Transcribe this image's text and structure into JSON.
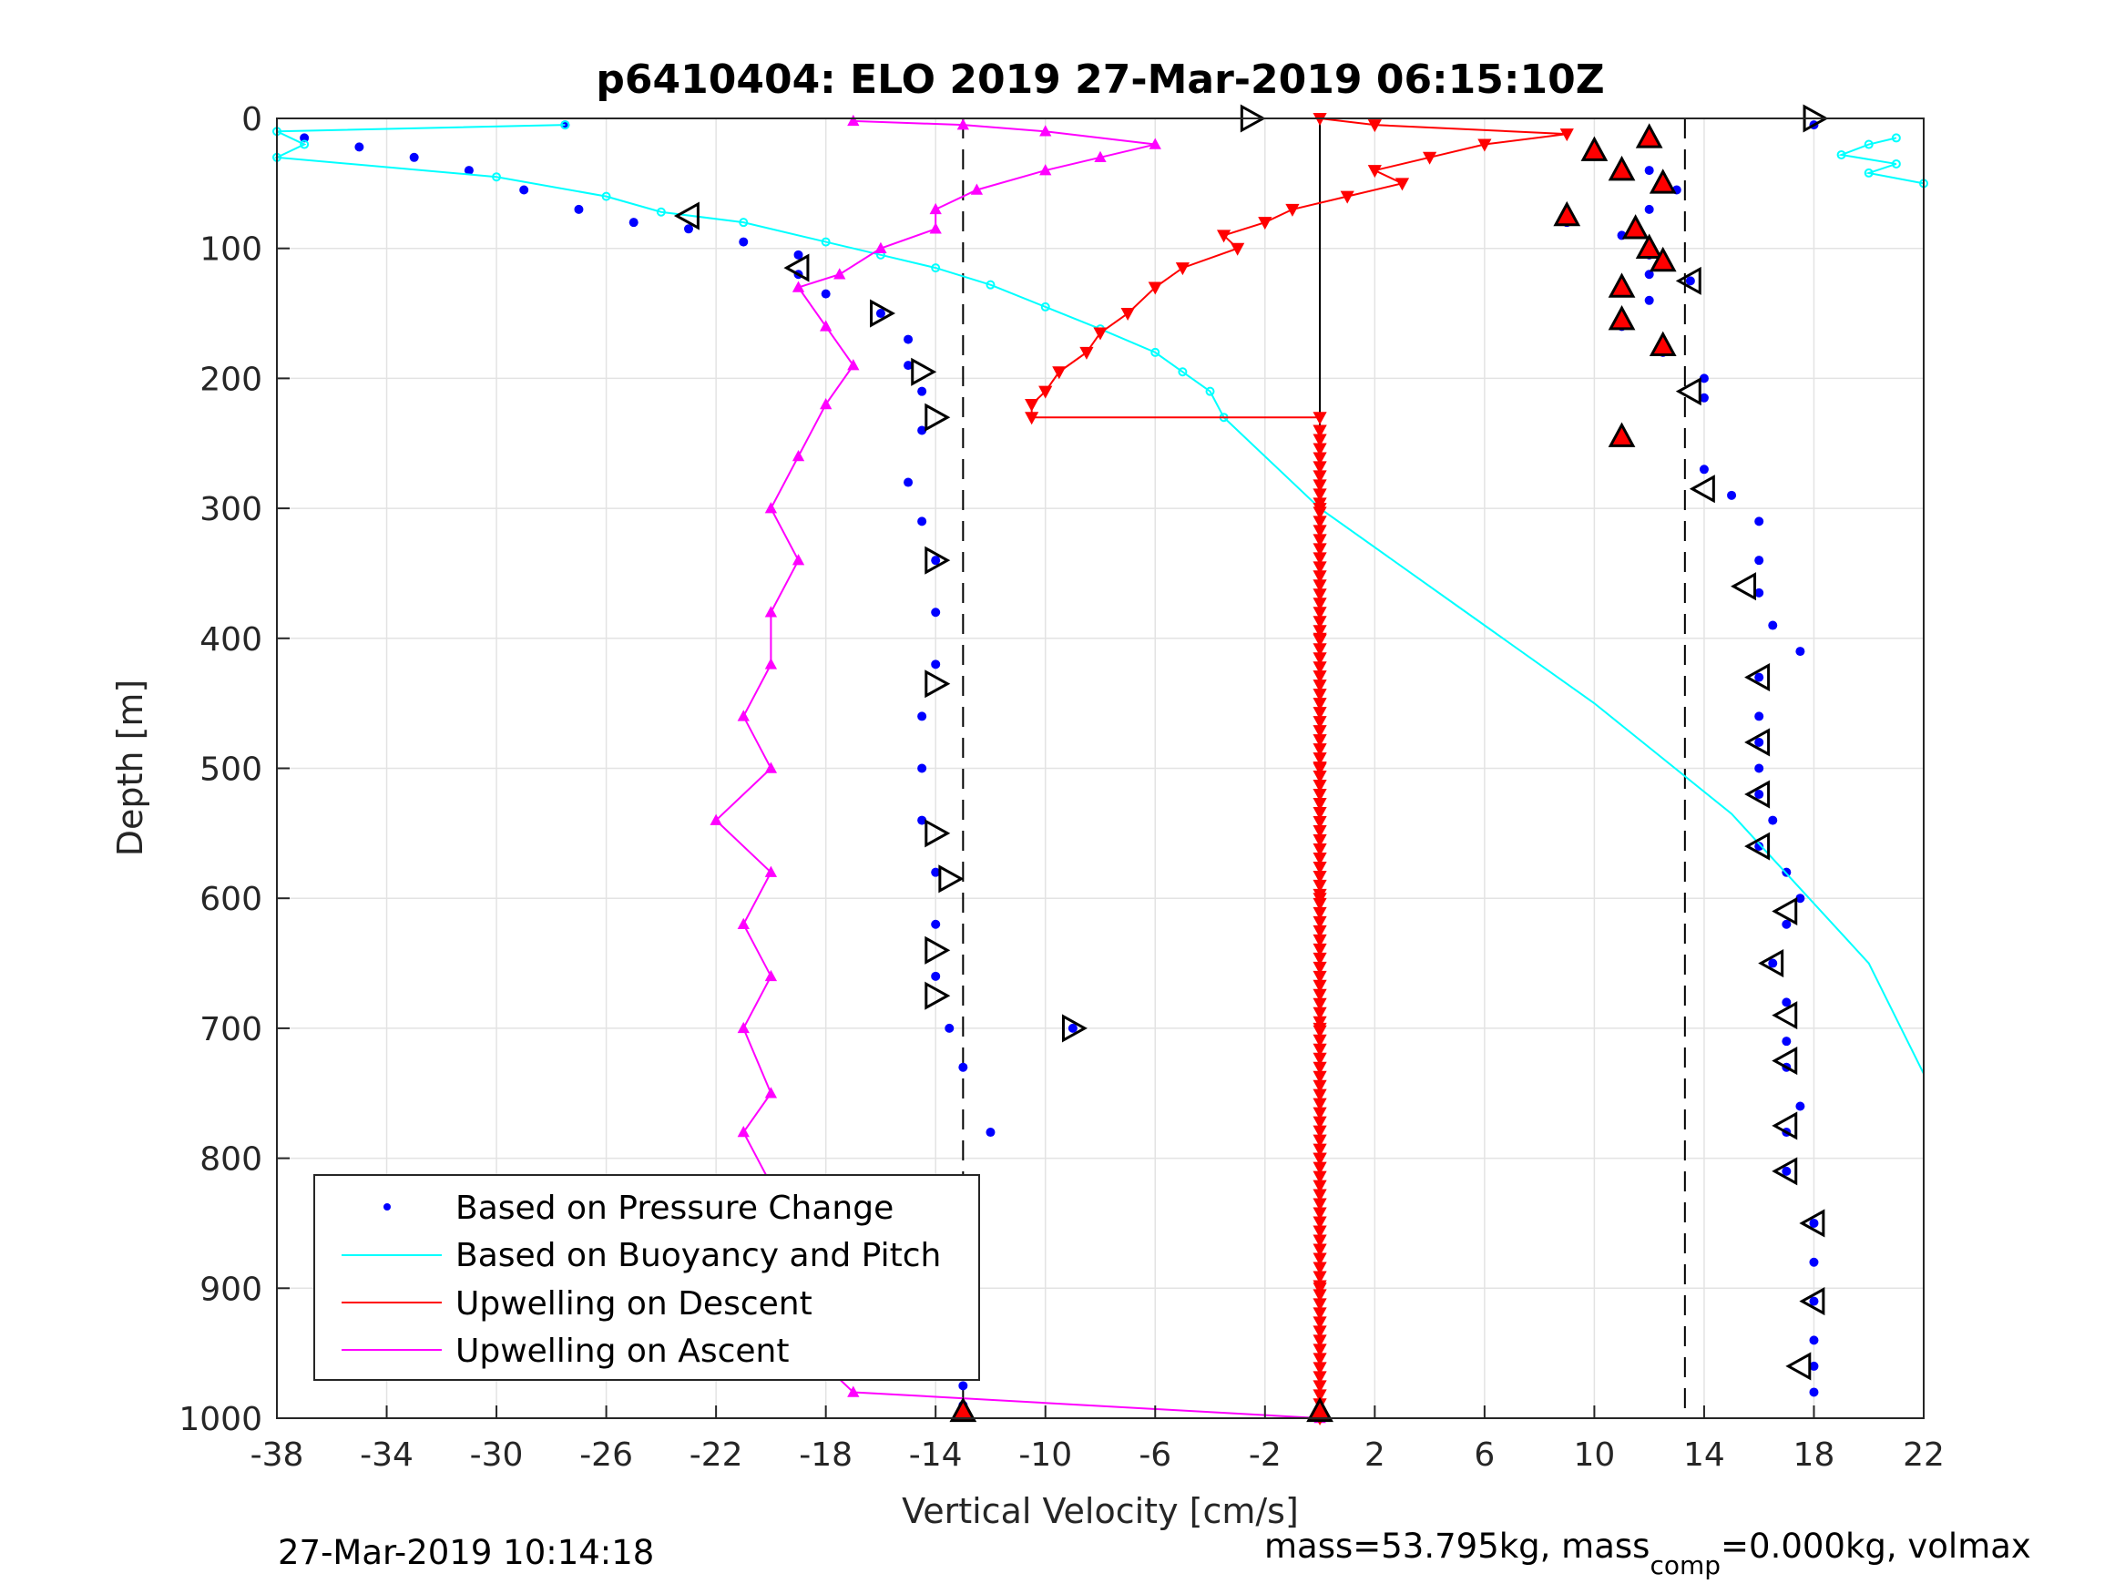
{
  "chart_data": {
    "type": "scatter",
    "title": "p6410404: ELO 2019 27-Mar-2019 06:15:10Z",
    "xlabel": "Vertical Velocity [cm/s]",
    "ylabel": "Depth [m]",
    "xlim": [
      -38,
      22
    ],
    "ylim": [
      0,
      1000
    ],
    "y_reversed": true,
    "grid": true,
    "x_ticks": [
      "-38",
      "-34",
      "-30",
      "-26",
      "-22",
      "-18",
      "-14",
      "-10",
      "-6",
      "-2",
      "2",
      "6",
      "10",
      "14",
      "18",
      "22"
    ],
    "y_ticks": [
      "0",
      "100",
      "200",
      "300",
      "400",
      "500",
      "600",
      "700",
      "800",
      "900",
      "1000"
    ],
    "legend": {
      "placement": "bottom-left",
      "entries": [
        "Based on Pressure Change",
        "Based on Buoyancy and Pitch",
        "Upwelling on Descent",
        "Upwelling on Ascent"
      ]
    },
    "reference_lines": {
      "dashed_x": [
        -13,
        13.3
      ],
      "solid_x": [
        0
      ]
    },
    "series": [
      {
        "name": "Based on Pressure Change",
        "color": "#0000ff",
        "marker": "dot",
        "descent": [
          [
            -27.5,
            5
          ],
          [
            -37,
            15
          ],
          [
            -35,
            22
          ],
          [
            -33,
            30
          ],
          [
            -31,
            40
          ],
          [
            -29,
            55
          ],
          [
            -27,
            70
          ],
          [
            -25,
            80
          ],
          [
            -23,
            85
          ],
          [
            -21,
            95
          ],
          [
            -19,
            105
          ],
          [
            -19,
            120
          ],
          [
            -18,
            135
          ],
          [
            -16,
            150
          ],
          [
            -15,
            170
          ],
          [
            -15,
            190
          ],
          [
            -14.5,
            210
          ],
          [
            -14.5,
            240
          ],
          [
            -15,
            280
          ],
          [
            -14.5,
            310
          ],
          [
            -14,
            340
          ],
          [
            -14,
            380
          ],
          [
            -14,
            420
          ],
          [
            -14.5,
            460
          ],
          [
            -14.5,
            500
          ],
          [
            -14.5,
            540
          ],
          [
            -14,
            580
          ],
          [
            -14,
            620
          ],
          [
            -14,
            660
          ],
          [
            -13.5,
            700
          ],
          [
            -9,
            700
          ],
          [
            -13,
            730
          ],
          [
            -12,
            780
          ],
          [
            -13,
            820
          ],
          [
            -13,
            860
          ],
          [
            -13,
            900
          ],
          [
            -13,
            940
          ],
          [
            -13,
            975
          ],
          [
            -13,
            990
          ]
        ],
        "ascent": [
          [
            18,
            5
          ],
          [
            12,
            15
          ],
          [
            10,
            25
          ],
          [
            12,
            40
          ],
          [
            13,
            55
          ],
          [
            12,
            70
          ],
          [
            9,
            80
          ],
          [
            11,
            90
          ],
          [
            12,
            105
          ],
          [
            12,
            120
          ],
          [
            13.5,
            125
          ],
          [
            12,
            140
          ],
          [
            11,
            160
          ],
          [
            12.5,
            180
          ],
          [
            14,
            200
          ],
          [
            14,
            215
          ],
          [
            11,
            245
          ],
          [
            14,
            270
          ],
          [
            15,
            290
          ],
          [
            16,
            310
          ],
          [
            16,
            340
          ],
          [
            16,
            365
          ],
          [
            16.5,
            390
          ],
          [
            17.5,
            410
          ],
          [
            16,
            430
          ],
          [
            16,
            460
          ],
          [
            16,
            480
          ],
          [
            16,
            500
          ],
          [
            16,
            520
          ],
          [
            16.5,
            540
          ],
          [
            16,
            560
          ],
          [
            17,
            580
          ],
          [
            17.5,
            600
          ],
          [
            17,
            620
          ],
          [
            16.5,
            650
          ],
          [
            17,
            680
          ],
          [
            17,
            710
          ],
          [
            17,
            730
          ],
          [
            17.5,
            760
          ],
          [
            17,
            780
          ],
          [
            17,
            810
          ],
          [
            18,
            850
          ],
          [
            18,
            880
          ],
          [
            18,
            910
          ],
          [
            18,
            940
          ],
          [
            18,
            960
          ],
          [
            18,
            980
          ]
        ]
      },
      {
        "name": "Based on Buoyancy and Pitch",
        "color": "#00ffff",
        "marker": "circle",
        "points": [
          [
            -27.5,
            5
          ],
          [
            -38,
            10
          ],
          [
            -37,
            20
          ],
          [
            -38,
            30
          ],
          [
            -30,
            45
          ],
          [
            -26,
            60
          ],
          [
            -24,
            72
          ],
          [
            -21,
            80
          ],
          [
            -18,
            95
          ],
          [
            -16,
            105
          ],
          [
            -14,
            115
          ],
          [
            -12,
            128
          ],
          [
            -10,
            145
          ],
          [
            -8,
            162
          ],
          [
            -6,
            180
          ],
          [
            -5,
            195
          ],
          [
            -4,
            210
          ],
          [
            -3.5,
            230
          ],
          [
            0,
            300
          ],
          [
            5,
            375
          ],
          [
            10,
            450
          ],
          [
            15,
            535
          ],
          [
            20,
            650
          ],
          [
            22,
            735
          ]
        ],
        "surface_points": [
          [
            21,
            15
          ],
          [
            20,
            20
          ],
          [
            19,
            28
          ],
          [
            21,
            35
          ],
          [
            20,
            42
          ],
          [
            22,
            50
          ]
        ]
      },
      {
        "name": "Upwelling on Descent",
        "color": "#ff0000",
        "marker": "triangle-down",
        "points": [
          [
            0,
            0
          ],
          [
            2,
            5
          ],
          [
            9,
            12
          ],
          [
            6,
            20
          ],
          [
            4,
            30
          ],
          [
            2,
            40
          ],
          [
            3,
            50
          ],
          [
            1,
            60
          ],
          [
            -1,
            70
          ],
          [
            -2,
            80
          ],
          [
            -3.5,
            90
          ],
          [
            -3,
            100
          ],
          [
            -5,
            115
          ],
          [
            -6,
            130
          ],
          [
            -7,
            150
          ],
          [
            -8,
            165
          ],
          [
            -8.5,
            180
          ],
          [
            -9.5,
            195
          ],
          [
            -10,
            210
          ],
          [
            -10.5,
            220
          ],
          [
            -10.5,
            230
          ],
          [
            0,
            230
          ]
        ],
        "at_depth_points": [
          [
            0,
            240
          ],
          [
            0,
            300
          ],
          [
            0,
            400
          ],
          [
            0,
            500
          ],
          [
            0,
            600
          ],
          [
            0,
            700
          ],
          [
            0,
            800
          ],
          [
            0,
            900
          ],
          [
            0,
            1000
          ]
        ]
      },
      {
        "name": "Upwelling on Ascent",
        "color": "#ff00ff",
        "marker": "triangle-up",
        "points": [
          [
            0,
            1000
          ],
          [
            -17,
            980
          ],
          [
            -18.5,
            950
          ],
          [
            -19,
            920
          ],
          [
            -19.5,
            900
          ],
          [
            -21,
            880
          ],
          [
            -21,
            850
          ],
          [
            -20,
            820
          ],
          [
            -21,
            780
          ],
          [
            -20,
            750
          ],
          [
            -21,
            700
          ],
          [
            -20,
            660
          ],
          [
            -21,
            620
          ],
          [
            -20,
            580
          ],
          [
            -22,
            540
          ],
          [
            -20,
            500
          ],
          [
            -21,
            460
          ],
          [
            -20,
            420
          ],
          [
            -20,
            380
          ],
          [
            -19,
            340
          ],
          [
            -20,
            300
          ],
          [
            -19,
            260
          ],
          [
            -18,
            220
          ],
          [
            -17,
            190
          ],
          [
            -18,
            160
          ],
          [
            -19,
            130
          ],
          [
            -17.5,
            120
          ],
          [
            -16,
            100
          ],
          [
            -14,
            85
          ],
          [
            -14,
            70
          ],
          [
            -12.5,
            55
          ],
          [
            -10,
            40
          ],
          [
            -8,
            30
          ],
          [
            -6,
            20
          ],
          [
            -10,
            10
          ],
          [
            -13,
            5
          ],
          [
            -17,
            2
          ]
        ]
      },
      {
        "name": "",
        "color": "#ff0000",
        "marker": "triangle-up-large",
        "points": [
          [
            -13,
            995
          ],
          [
            0,
            995
          ],
          [
            10,
            25
          ],
          [
            12,
            15
          ],
          [
            11,
            40
          ],
          [
            12.5,
            50
          ],
          [
            9,
            75
          ],
          [
            11.5,
            85
          ],
          [
            12,
            100
          ],
          [
            12.5,
            110
          ],
          [
            11,
            130
          ],
          [
            11,
            155
          ],
          [
            12.5,
            175
          ],
          [
            11,
            245
          ]
        ]
      },
      {
        "name": "",
        "color": "#000000",
        "marker": "triangle-open",
        "points": [
          [
            -2.5,
            0
          ],
          [
            -23,
            75
          ],
          [
            -19,
            115
          ],
          [
            -16,
            150
          ],
          [
            -14.5,
            195
          ],
          [
            -14,
            230
          ],
          [
            -14,
            340
          ],
          [
            -14,
            435
          ],
          [
            -14,
            550
          ],
          [
            -13.5,
            585
          ],
          [
            -14,
            640
          ],
          [
            -14,
            675
          ],
          [
            -9,
            700
          ],
          [
            -13,
            865
          ],
          [
            -13,
            940
          ],
          [
            18,
            0
          ],
          [
            13.5,
            125
          ],
          [
            13.5,
            210
          ],
          [
            14,
            285
          ],
          [
            15.5,
            360
          ],
          [
            16,
            430
          ],
          [
            16,
            480
          ],
          [
            16,
            520
          ],
          [
            16,
            560
          ],
          [
            17,
            610
          ],
          [
            16.5,
            650
          ],
          [
            17,
            690
          ],
          [
            17,
            725
          ],
          [
            17,
            775
          ],
          [
            17,
            810
          ],
          [
            18,
            850
          ],
          [
            18,
            910
          ],
          [
            17.5,
            960
          ]
        ]
      }
    ]
  },
  "footer": {
    "timestamp": "27-Mar-2019 10:14:18",
    "mass_prefix": "mass=53.795kg, mass",
    "mass_sub": "comp",
    "mass_suffix": "=0.000kg, volmax"
  }
}
